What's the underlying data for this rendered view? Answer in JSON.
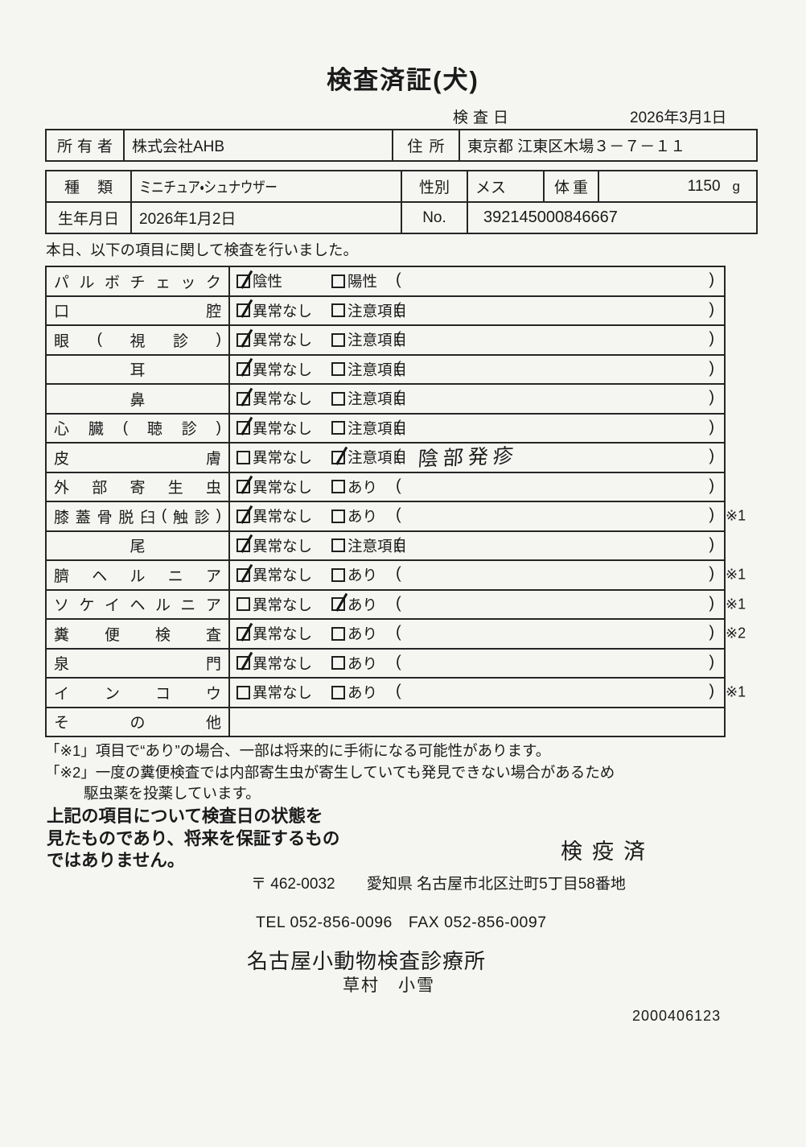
{
  "page": {
    "title": "検査済証(犬)",
    "exam_date_label": "検査日",
    "exam_date": "2026年3月1日"
  },
  "owner_table": {
    "owner_label": "所有者",
    "owner_value": "株式会社AHB",
    "address_label": "住所",
    "address_value": "東京都 江東区木場３－７－１１"
  },
  "animal_table": {
    "breed_label": "種類",
    "breed_value": "ミニチュア・シュナウザー",
    "sex_label": "性別",
    "sex_value": "メス",
    "weight_label": "体重",
    "weight_value": "1150",
    "weight_unit": "g",
    "birth_label": "生年月日",
    "birth_value": "2026年1月2日",
    "no_label": "No.",
    "no_value": "392145000846667"
  },
  "intro": "本日、以下の項目に関して検査を行いました。",
  "exam_table": {
    "paren_open": "(",
    "paren_close": ")",
    "rows": [
      {
        "label": "パルボチェック",
        "opt1": "陰性",
        "opt1_checked": true,
        "opt2": "陽性",
        "opt2_checked": false,
        "note": "",
        "mark": ""
      },
      {
        "label": "口腔",
        "opt1": "異常なし",
        "opt1_checked": true,
        "opt2": "注意項目",
        "opt2_checked": false,
        "note": "",
        "mark": ""
      },
      {
        "label": "眼(視診)",
        "opt1": "異常なし",
        "opt1_checked": true,
        "opt2": "注意項目",
        "opt2_checked": false,
        "note": "",
        "mark": ""
      },
      {
        "label": "耳",
        "center": true,
        "opt1": "異常なし",
        "opt1_checked": true,
        "opt2": "注意項目",
        "opt2_checked": false,
        "note": "",
        "mark": ""
      },
      {
        "label": "鼻",
        "center": true,
        "opt1": "異常なし",
        "opt1_checked": true,
        "opt2": "注意項目",
        "opt2_checked": false,
        "note": "",
        "mark": ""
      },
      {
        "label": "心臓(聴診)",
        "opt1": "異常なし",
        "opt1_checked": true,
        "opt2": "注意項目",
        "opt2_checked": false,
        "note": "",
        "mark": ""
      },
      {
        "label": "皮膚",
        "opt1": "異常なし",
        "opt1_checked": false,
        "opt2": "注意項目",
        "opt2_checked": true,
        "note": "陰部発疹",
        "mark": ""
      },
      {
        "label": "外部寄生虫",
        "opt1": "異常なし",
        "opt1_checked": true,
        "opt2": "あり",
        "opt2_checked": false,
        "note": "",
        "mark": ""
      },
      {
        "label": "膝蓋骨脱臼(触診)",
        "opt1": "異常なし",
        "opt1_checked": true,
        "opt2": "あり",
        "opt2_checked": false,
        "note": "",
        "mark": "※1"
      },
      {
        "label": "尾",
        "center": true,
        "opt1": "異常なし",
        "opt1_checked": true,
        "opt2": "注意項目",
        "opt2_checked": false,
        "note": "",
        "mark": ""
      },
      {
        "label": "臍ヘルニア",
        "opt1": "異常なし",
        "opt1_checked": true,
        "opt2": "あり",
        "opt2_checked": false,
        "note": "",
        "mark": "※1"
      },
      {
        "label": "ソケイヘルニア",
        "opt1": "異常なし",
        "opt1_checked": false,
        "opt2": "あり",
        "opt2_checked": true,
        "note": "",
        "mark": "※1"
      },
      {
        "label": "糞便検査",
        "opt1": "異常なし",
        "opt1_checked": true,
        "opt2": "あり",
        "opt2_checked": false,
        "note": "",
        "mark": "※2"
      },
      {
        "label": "泉門",
        "opt1": "異常なし",
        "opt1_checked": true,
        "opt2": "あり",
        "opt2_checked": false,
        "note": "",
        "mark": ""
      },
      {
        "label": "インコウ",
        "opt1": "異常なし",
        "opt1_checked": false,
        "opt2": "あり",
        "opt2_checked": false,
        "note": "",
        "mark": "※1"
      },
      {
        "label": "その他",
        "note": "",
        "mark": ""
      }
    ]
  },
  "notes": {
    "line1": "「※1」項目で“あり”の場合、一部は将来的に手術になる可能性があります。",
    "line2": "「※2」一度の糞便検査では内部寄生虫が寄生していても発見できない場合があるため",
    "line3": "駆虫薬を投薬しています。"
  },
  "disclaimer": {
    "line1": "上記の項目について検査日の状態を",
    "line2": "見たものであり、将来を保証するもの",
    "line3": "ではありません。"
  },
  "stamp": "検疫済",
  "clinic": {
    "postal": "〒 462-0032",
    "address": "愛知県 名古屋市北区辻町5丁目58番地",
    "tel_fax": "TEL 052-856-0096　FAX 052-856-0097",
    "name": "名古屋小動物検査診療所",
    "vet_name": "草村　小雪",
    "serial": "2000406123"
  }
}
